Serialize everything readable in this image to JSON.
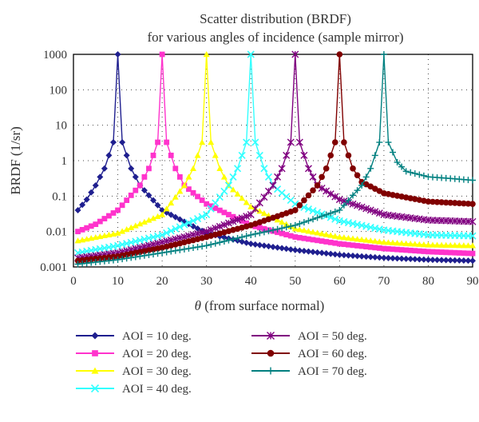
{
  "chart_data": {
    "type": "line",
    "title_lines": [
      "Scatter distribution (BRDF)",
      "for various angles of incidence (sample mirror)"
    ],
    "xlabel_symbol": "θ",
    "xlabel_text": "(from surface normal)",
    "ylabel": "BRDF (1/sr)",
    "xlim": [
      0,
      90
    ],
    "ylim": [
      0.001,
      1000
    ],
    "yscale": "log",
    "grid": "dotted",
    "legend_placement": "bottom",
    "x_ticks": [
      "0",
      "10",
      "20",
      "30",
      "40",
      "50",
      "60",
      "70",
      "80",
      "90"
    ],
    "y_ticks": [
      "0.001",
      "0.01",
      "0.1",
      "1",
      "10",
      "100",
      "1000"
    ],
    "series": [
      {
        "name": "AOI = 10 deg.",
        "aoi": 10,
        "color": "#1f1f8f",
        "marker": "diamond",
        "x": [
          1,
          3,
          5,
          7,
          9,
          10,
          11,
          13,
          15,
          20,
          30,
          40,
          50,
          60,
          70,
          80,
          90
        ],
        "y": [
          0.04,
          0.08,
          0.2,
          0.6,
          3.3,
          1000,
          3.3,
          0.6,
          0.2,
          0.04,
          0.009,
          0.0045,
          0.003,
          0.0022,
          0.0018,
          0.0016,
          0.0015
        ]
      },
      {
        "name": "AOI = 20 deg.",
        "aoi": 20,
        "color": "#ff33cc",
        "marker": "square",
        "x": [
          1,
          5,
          10,
          15,
          17,
          19,
          20,
          21,
          23,
          25,
          30,
          40,
          50,
          60,
          70,
          80,
          90
        ],
        "y": [
          0.01,
          0.016,
          0.04,
          0.2,
          0.6,
          3.3,
          1000,
          3.3,
          0.6,
          0.2,
          0.06,
          0.015,
          0.007,
          0.0045,
          0.0033,
          0.0027,
          0.0024
        ]
      },
      {
        "name": "AOI = 30 deg.",
        "aoi": 30,
        "color": "#ffff00",
        "marker": "triangle",
        "x": [
          1,
          10,
          20,
          25,
          27,
          29,
          30,
          31,
          33,
          35,
          40,
          50,
          60,
          70,
          80,
          90
        ],
        "y": [
          0.0055,
          0.009,
          0.03,
          0.2,
          0.6,
          3.3,
          1000,
          3.3,
          0.6,
          0.2,
          0.05,
          0.012,
          0.007,
          0.005,
          0.0042,
          0.004
        ]
      },
      {
        "name": "AOI = 40 deg.",
        "aoi": 40,
        "color": "#33ffff",
        "marker": "x",
        "x": [
          1,
          10,
          20,
          30,
          35,
          37,
          39,
          40,
          41,
          43,
          45,
          50,
          60,
          70,
          80,
          90
        ],
        "y": [
          0.0025,
          0.004,
          0.008,
          0.03,
          0.2,
          0.6,
          3.3,
          1000,
          3.3,
          0.6,
          0.2,
          0.06,
          0.02,
          0.011,
          0.008,
          0.0075
        ]
      },
      {
        "name": "AOI = 50 deg.",
        "aoi": 50,
        "color": "#800080",
        "marker": "star",
        "x": [
          1,
          10,
          20,
          30,
          40,
          45,
          47,
          49,
          50,
          51,
          53,
          55,
          60,
          70,
          80,
          90
        ],
        "y": [
          0.0018,
          0.0025,
          0.005,
          0.01,
          0.03,
          0.2,
          0.6,
          3.3,
          1000,
          3.3,
          0.6,
          0.2,
          0.08,
          0.03,
          0.021,
          0.019
        ]
      },
      {
        "name": "AOI = 60 deg.",
        "aoi": 60,
        "color": "#800000",
        "marker": "circle",
        "x": [
          1,
          10,
          20,
          30,
          40,
          50,
          55,
          57,
          59,
          60,
          61,
          63,
          65,
          70,
          80,
          90
        ],
        "y": [
          0.0015,
          0.002,
          0.0035,
          0.007,
          0.015,
          0.04,
          0.2,
          0.6,
          3.3,
          1000,
          3.3,
          0.6,
          0.25,
          0.12,
          0.07,
          0.06
        ]
      },
      {
        "name": "AOI = 70 deg.",
        "aoi": 70,
        "color": "#008080",
        "marker": "plus",
        "x": [
          1,
          10,
          20,
          30,
          40,
          50,
          60,
          65,
          67,
          69,
          70,
          71,
          73,
          75,
          80,
          90
        ],
        "y": [
          0.0012,
          0.0016,
          0.0025,
          0.004,
          0.008,
          0.015,
          0.04,
          0.2,
          0.6,
          3.3,
          1000,
          3.3,
          0.9,
          0.5,
          0.35,
          0.28
        ]
      }
    ]
  }
}
